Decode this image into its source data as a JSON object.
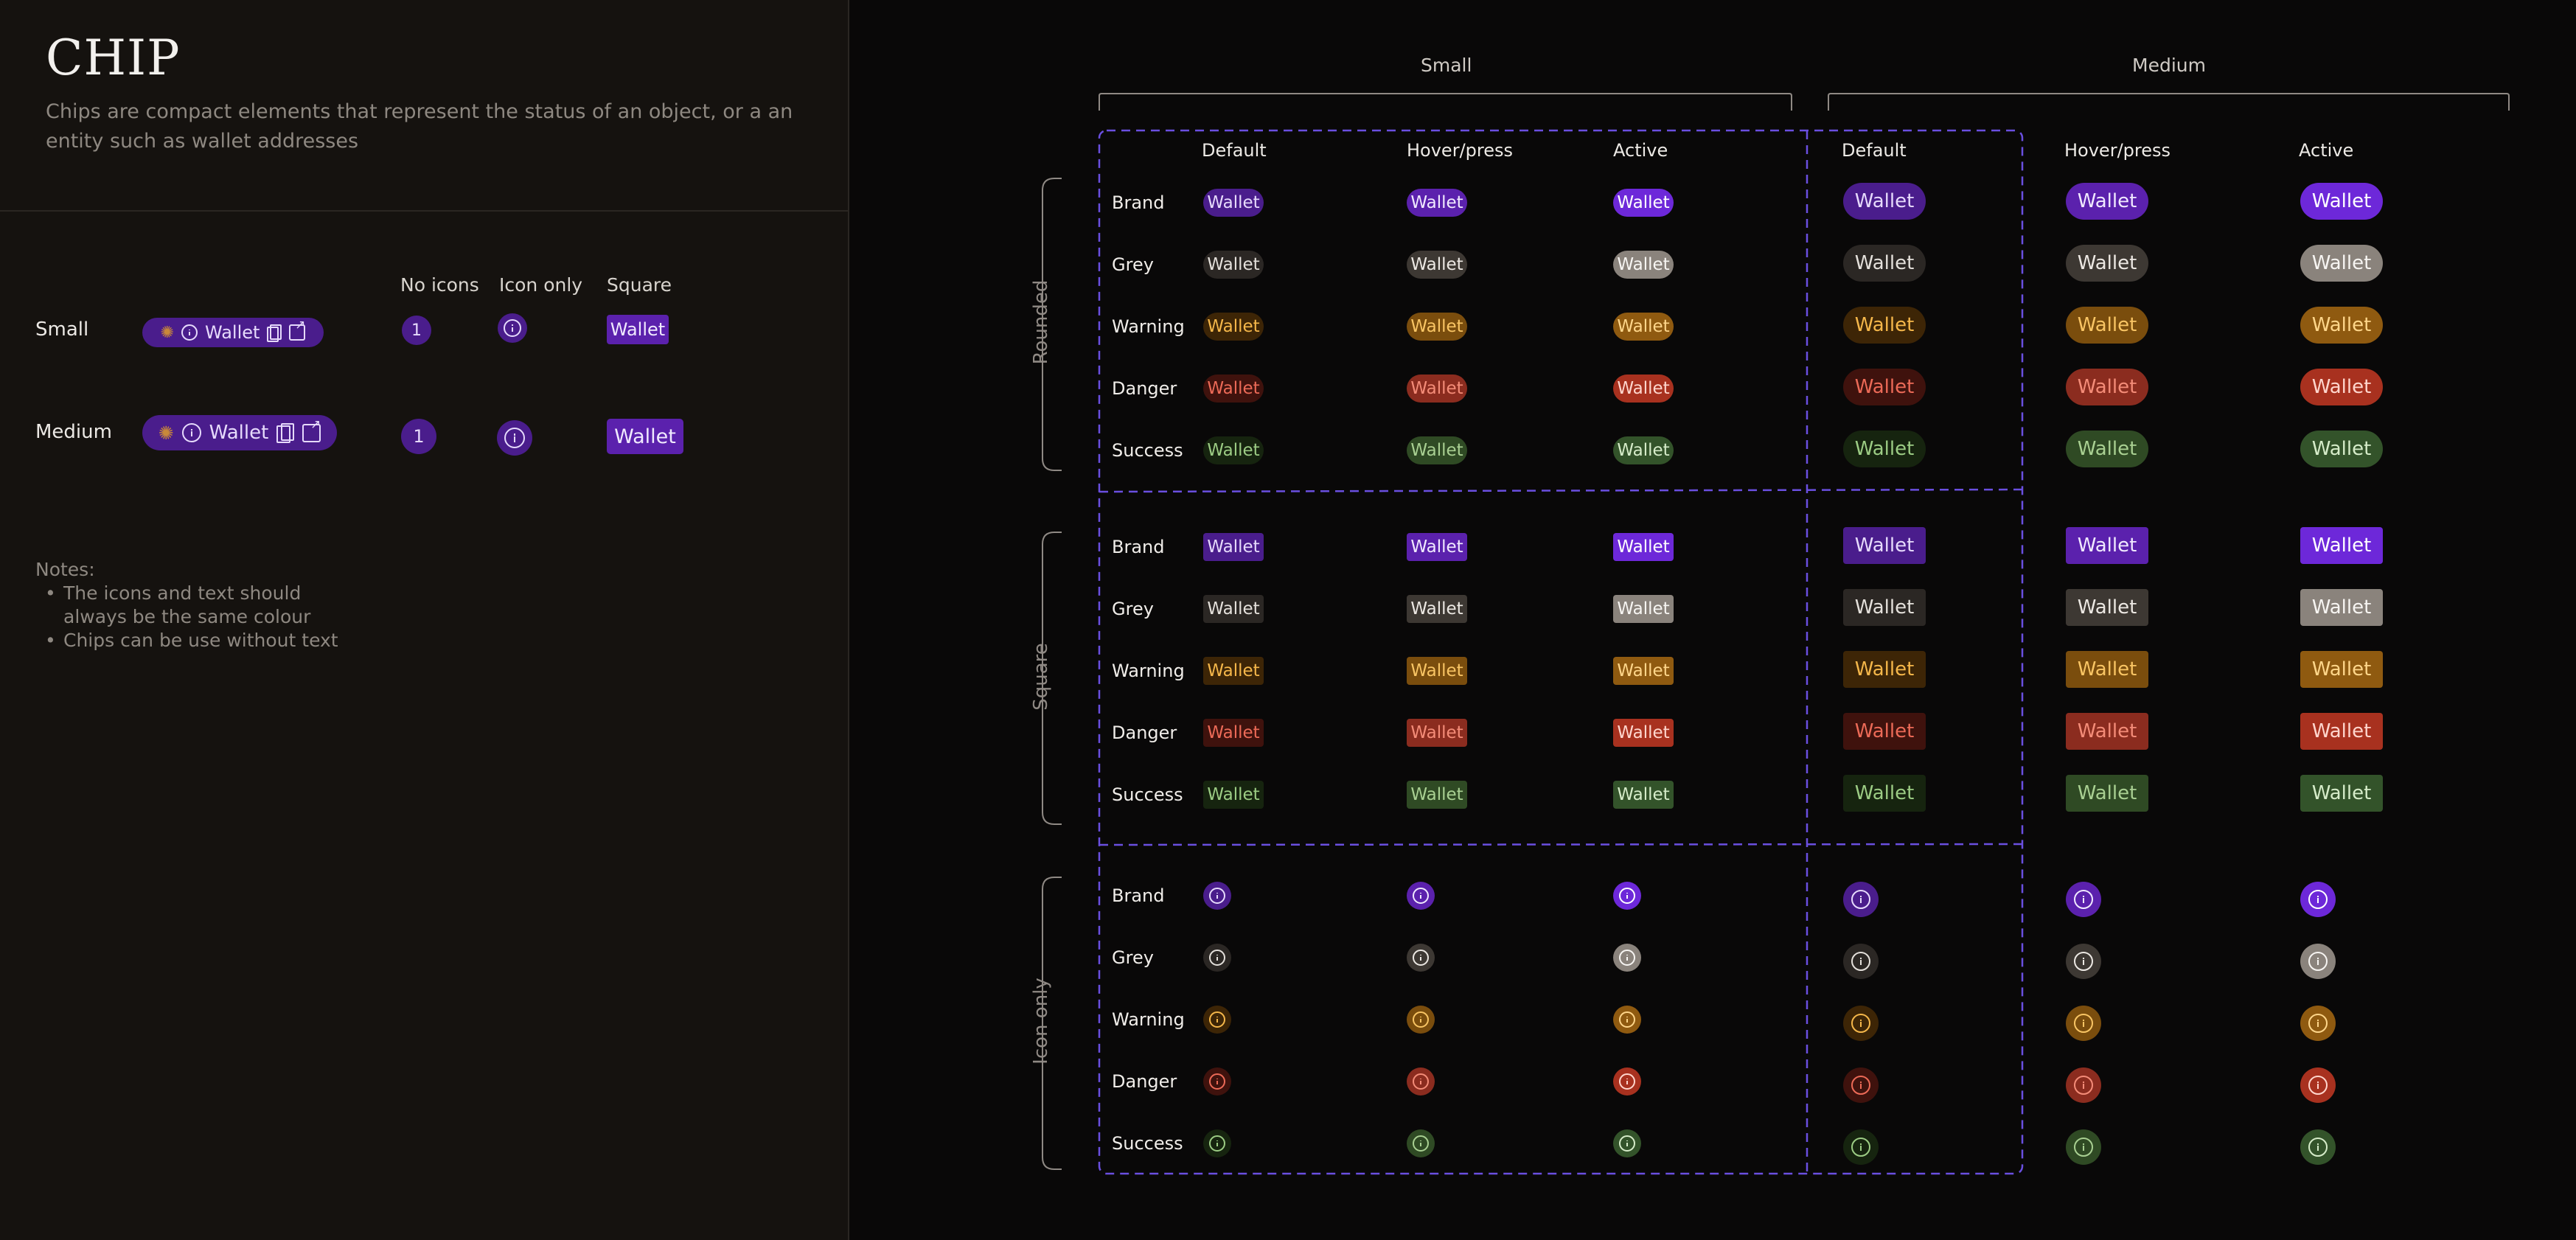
{
  "page": {
    "title": "CHIP",
    "description": "Chips are compact elements that represent the status of an object, or a an entity such as wallet addresses"
  },
  "overview": {
    "column_headers": [
      "No icons",
      "Icon only",
      "Square"
    ],
    "rows": [
      {
        "label": "Small",
        "chip_text": "Wallet",
        "count": "1",
        "square_text": "Wallet"
      },
      {
        "label": "Medium",
        "chip_text": "Wallet",
        "count": "1",
        "square_text": "Wallet"
      }
    ]
  },
  "notes": {
    "heading": "Notes:",
    "items": [
      "The icons and text should always be the same colour",
      "Chips can be use without text"
    ]
  },
  "matrix": {
    "sizes": [
      "Small",
      "Medium"
    ],
    "states": [
      "Default",
      "Hover/press",
      "Active"
    ],
    "groups": [
      "Rounded",
      "Square",
      "Icon only"
    ],
    "variants": [
      "Brand",
      "Grey",
      "Warning",
      "Danger",
      "Success"
    ],
    "chip_text": "Wallet"
  },
  "colors": {
    "accent_dashed": "#6a4fe0",
    "Brand": {
      "bg": [
        "#4a1d8c",
        "#5b21ad",
        "#6d28d9"
      ],
      "fg": [
        "#e6dafc",
        "#f0e9ff",
        "#ffffff"
      ]
    },
    "Grey": {
      "bg": [
        "#2b2724",
        "#3d3833",
        "#8a837c"
      ],
      "fg": [
        "#e4e0db",
        "#ece8e3",
        "#f7f5f2"
      ]
    },
    "Warning": {
      "bg": [
        "#3d2506",
        "#7a4d0d",
        "#8f5a10"
      ],
      "fg": [
        "#f5b74a",
        "#f9c564",
        "#ffd68a"
      ]
    },
    "Danger": {
      "bg": [
        "#3f120d",
        "#8b2c1f",
        "#a8311f"
      ],
      "fg": [
        "#ec6a57",
        "#f48c78",
        "#ffd6cd"
      ]
    },
    "Success": {
      "bg": [
        "#16240f",
        "#2f4a24",
        "#33532a"
      ],
      "fg": [
        "#9ccc84",
        "#a9d092",
        "#d6ecc9"
      ]
    }
  }
}
